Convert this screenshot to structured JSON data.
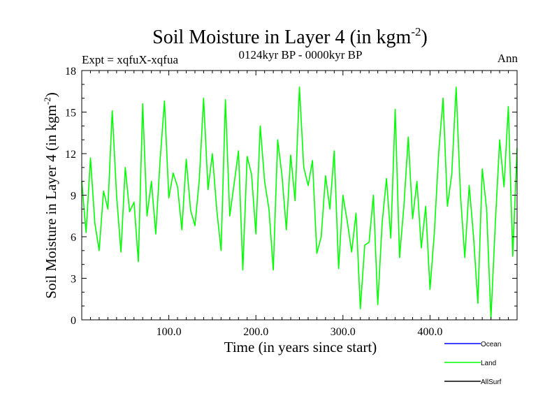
{
  "chart_data": {
    "type": "line",
    "title": "Soil Moisture in Layer 4 (in kgm",
    "title_sup": "-2",
    "title_close": ")",
    "subtitle": "0124kyr BP - 0000kyr BP",
    "expt_label": "Expt = xqfuX-xqfua",
    "season_label": "Ann",
    "xlabel": "Time (in years since start)",
    "ylabel": "Soil Moisture in Layer 4 (in kgm",
    "ylabel_sup": "-2",
    "ylabel_close": ")",
    "xlim": [
      0,
      500
    ],
    "ylim": [
      0,
      18
    ],
    "xticks": [
      100,
      200,
      300,
      400
    ],
    "xtick_labels": [
      "100.0",
      "200.0",
      "300.0",
      "400.0"
    ],
    "yticks": [
      0,
      3,
      6,
      9,
      12,
      15,
      18
    ],
    "ytick_labels": [
      "0",
      "3",
      "6",
      "9",
      "12",
      "15",
      "18"
    ],
    "legend_position": "bottom-right, below plot",
    "legend": [
      {
        "name": "Ocean",
        "color": "#0000ff"
      },
      {
        "name": "Land",
        "color": "#00ff00"
      },
      {
        "name": "AllSurf",
        "color": "#000000"
      }
    ],
    "series": [
      {
        "name": "Land",
        "color": "#00ff00",
        "x": [
          0,
          5,
          10,
          15,
          20,
          25,
          30,
          35,
          40,
          45,
          50,
          55,
          60,
          65,
          70,
          75,
          80,
          85,
          90,
          95,
          100,
          105,
          110,
          115,
          120,
          125,
          130,
          135,
          140,
          145,
          150,
          155,
          160,
          165,
          170,
          175,
          180,
          185,
          190,
          195,
          200,
          205,
          210,
          215,
          220,
          225,
          230,
          235,
          240,
          245,
          250,
          255,
          260,
          265,
          270,
          275,
          280,
          285,
          290,
          295,
          300,
          305,
          310,
          315,
          320,
          325,
          330,
          335,
          340,
          345,
          350,
          355,
          360,
          365,
          370,
          375,
          380,
          385,
          390,
          395,
          400,
          405,
          410,
          415,
          420,
          425,
          430,
          435,
          440,
          445,
          450,
          455,
          460,
          465,
          470,
          475,
          480,
          485,
          490,
          495,
          500
        ],
        "values": [
          10.0,
          6.3,
          11.7,
          7.0,
          5.0,
          9.3,
          8.0,
          15.1,
          9.0,
          4.9,
          11.0,
          7.8,
          8.5,
          4.2,
          15.6,
          7.5,
          10.0,
          6.2,
          11.5,
          15.8,
          8.8,
          10.6,
          9.6,
          6.5,
          11.6,
          7.9,
          6.8,
          10.1,
          16.0,
          9.4,
          12.0,
          8.0,
          5.0,
          15.9,
          7.5,
          9.8,
          12.2,
          3.6,
          11.8,
          10.5,
          6.2,
          14.0,
          10.0,
          8.0,
          3.6,
          13.0,
          10.4,
          6.5,
          11.9,
          8.6,
          16.8,
          11.0,
          9.7,
          11.5,
          4.8,
          6.0,
          10.4,
          8.0,
          12.2,
          3.7,
          9.0,
          7.1,
          4.9,
          7.7,
          0.8,
          5.4,
          5.6,
          9.0,
          1.1,
          7.0,
          10.2,
          5.9,
          15.2,
          4.5,
          8.2,
          13.2,
          7.3,
          10.0,
          5.2,
          8.2,
          2.2,
          6.3,
          12.1,
          16.0,
          8.2,
          10.5,
          16.8,
          9.0,
          4.5,
          9.7,
          6.0,
          1.2,
          10.9,
          8.0,
          0.1,
          7.0,
          13.0,
          9.6,
          15.4,
          4.6,
          12.4
        ]
      }
    ]
  }
}
